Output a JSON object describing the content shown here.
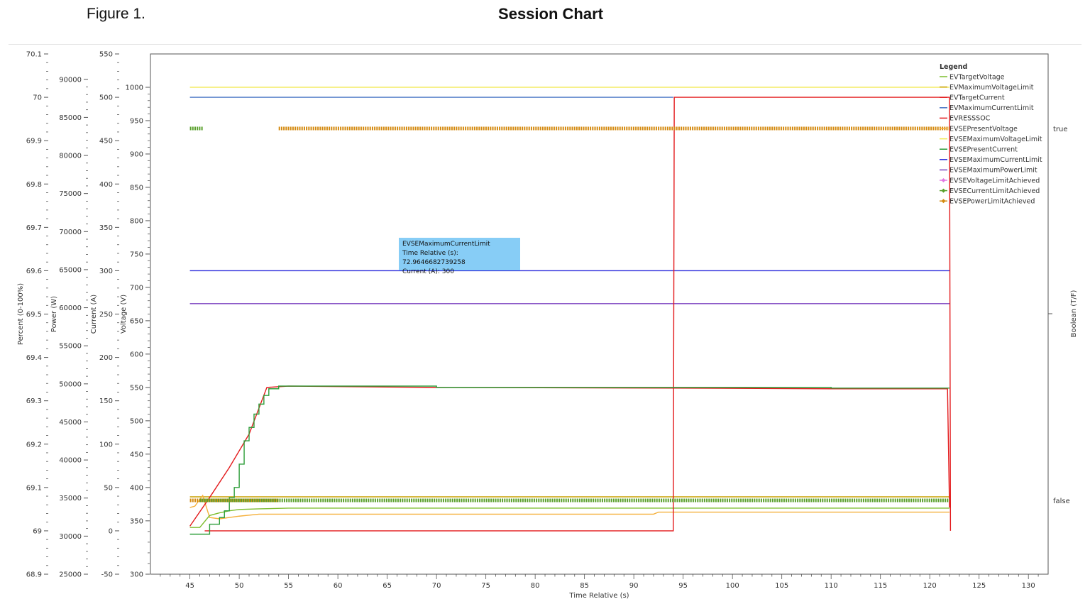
{
  "page": {
    "figure_label": "Figure 1.",
    "title": "Session Chart"
  },
  "tooltip": {
    "series": "EVSEMaximumCurrentLimit",
    "line1": "Time Relative (s): 72.9646682739258",
    "line2": "Current (A): 300"
  },
  "chart_data": {
    "type": "line",
    "title": "Session Chart",
    "xlabel": "Time Relative (s)",
    "xlim": [
      41,
      132
    ],
    "x_ticks": [
      45,
      50,
      55,
      60,
      65,
      70,
      75,
      80,
      85,
      90,
      95,
      100,
      105,
      110,
      115,
      120,
      125,
      130
    ],
    "grid": false,
    "legend_title": "Legend",
    "legend_position": "top-right",
    "axes": [
      {
        "id": "percent",
        "label": "Percent (0-100%)",
        "min": 68.9,
        "max": 70.1,
        "ticks": [
          "68.9",
          "69",
          "69.1",
          "69.2",
          "69.3",
          "69.4",
          "69.5",
          "69.6",
          "69.7",
          "69.8",
          "69.9",
          "70",
          "70.1"
        ]
      },
      {
        "id": "power",
        "label": "Power (W)",
        "min": 25000,
        "max": 93333,
        "ticks": [
          "25000",
          "30000",
          "35000",
          "40000",
          "45000",
          "50000",
          "55000",
          "60000",
          "65000",
          "70000",
          "75000",
          "80000",
          "85000",
          "90000"
        ]
      },
      {
        "id": "current",
        "label": "Current (A)",
        "min": -50,
        "max": 550,
        "ticks": [
          "-50",
          "0",
          "50",
          "100",
          "150",
          "200",
          "250",
          "300",
          "350",
          "400",
          "450",
          "500",
          "550"
        ]
      },
      {
        "id": "voltage",
        "label": "Voltage (V)",
        "min": 270,
        "max": 1050,
        "ticks": [
          "300",
          "350",
          "400",
          "450",
          "500",
          "550",
          "600",
          "650",
          "700",
          "750",
          "800",
          "850",
          "900",
          "950",
          "1000"
        ],
        "tick_values": [
          270,
          350,
          400,
          450,
          500,
          550,
          600,
          650,
          700,
          750,
          800,
          850,
          900,
          950,
          1000
        ]
      },
      {
        "id": "boolean",
        "label": "Boolean (T/F)",
        "position": "right",
        "ticks": [
          "false",
          "true"
        ]
      }
    ],
    "series": [
      {
        "name": "EVTargetVoltage",
        "color": "#7cbd2e",
        "axis": "voltage",
        "style": "line",
        "points": [
          [
            45,
            340
          ],
          [
            46,
            340
          ],
          [
            47,
            358
          ],
          [
            48,
            362
          ],
          [
            49,
            365
          ],
          [
            50,
            367
          ],
          [
            52,
            368
          ],
          [
            55,
            369
          ],
          [
            70,
            369
          ],
          [
            94,
            369
          ],
          [
            110,
            369
          ],
          [
            122,
            369
          ]
        ]
      },
      {
        "name": "EVMaximumVoltageLimit",
        "color": "#c8a000",
        "axis": "voltage",
        "style": "line",
        "points": [
          [
            45,
            386
          ],
          [
            122,
            386
          ]
        ]
      },
      {
        "name": "EVTargetCurrent",
        "color": "#e31a1c",
        "axis": "current",
        "style": "line",
        "points": [
          [
            46.5,
            0
          ],
          [
            94,
            0
          ],
          [
            94.1,
            500
          ],
          [
            122,
            500
          ],
          [
            122.1,
            0
          ]
        ]
      },
      {
        "name": "EVMaximumCurrentLimit",
        "color": "#4472c4",
        "axis": "current",
        "style": "line",
        "points": [
          [
            45,
            500
          ],
          [
            94,
            500
          ]
        ]
      },
      {
        "name": "EVRESSSOC",
        "color": "#e31a1c",
        "axis": "voltage",
        "style": "line",
        "points": [
          [
            45,
            342
          ],
          [
            47,
            385
          ],
          [
            49,
            430
          ],
          [
            51,
            480
          ],
          [
            52.8,
            550
          ],
          [
            55,
            552
          ],
          [
            70,
            550
          ],
          [
            94,
            549
          ],
          [
            110,
            548
          ],
          [
            121.8,
            548
          ],
          [
            122,
            370
          ]
        ]
      },
      {
        "name": "EVSEPresentVoltage",
        "color": "#f5b13d",
        "axis": "voltage",
        "style": "line",
        "points": [
          [
            45,
            370
          ],
          [
            45.5,
            372
          ],
          [
            46.3,
            388
          ],
          [
            47,
            355
          ],
          [
            48,
            353
          ],
          [
            50,
            357
          ],
          [
            52,
            360
          ],
          [
            55,
            360
          ],
          [
            70,
            360
          ],
          [
            92,
            360
          ],
          [
            92.5,
            363
          ],
          [
            122,
            363
          ]
        ]
      },
      {
        "name": "EVSEMaximumVoltageLimit",
        "color": "#f2e84d",
        "axis": "voltage",
        "style": "line",
        "points": [
          [
            45,
            1000
          ],
          [
            122,
            1000
          ]
        ]
      },
      {
        "name": "EVSEPresentCurrent",
        "color": "#2e9e3a",
        "axis": "voltage",
        "style": "step",
        "points": [
          [
            45,
            330
          ],
          [
            46.5,
            330
          ],
          [
            47,
            345
          ],
          [
            48,
            355
          ],
          [
            48.5,
            365
          ],
          [
            49,
            385
          ],
          [
            49.5,
            400
          ],
          [
            50,
            435
          ],
          [
            50.5,
            470
          ],
          [
            51,
            490
          ],
          [
            51.5,
            510
          ],
          [
            52,
            525
          ],
          [
            52.5,
            538
          ],
          [
            53,
            548
          ],
          [
            54,
            552
          ],
          [
            56,
            552
          ],
          [
            70,
            550
          ],
          [
            94,
            550
          ],
          [
            110,
            549
          ],
          [
            122,
            549
          ]
        ]
      },
      {
        "name": "EVSEMaximumCurrentLimit",
        "color": "#2c2cdc",
        "axis": "current",
        "style": "line",
        "points": [
          [
            45,
            300
          ],
          [
            122,
            300
          ]
        ]
      },
      {
        "name": "EVSEMaximumPowerLimit",
        "color": "#7a3fbf",
        "axis": "current",
        "style": "line",
        "points": [
          [
            45,
            262
          ],
          [
            122,
            262
          ]
        ]
      },
      {
        "name": "EVSEVoltageLimitAchieved",
        "color": "#e277e2",
        "axis": "boolean",
        "style": "markers",
        "points": []
      },
      {
        "name": "EVSECurrentLimitAchieved",
        "color": "#5aa02c",
        "axis": "boolean",
        "style": "markers",
        "points": [
          [
            45,
            1
          ],
          [
            46.3,
            1
          ],
          [
            46,
            0
          ],
          [
            122,
            0
          ]
        ]
      },
      {
        "name": "EVSEPowerLimitAchieved",
        "color": "#d48a10",
        "axis": "boolean",
        "style": "markers",
        "points": [
          [
            45,
            0
          ],
          [
            54,
            0
          ],
          [
            54,
            1
          ],
          [
            122,
            1
          ]
        ]
      }
    ],
    "annotations": [
      {
        "type": "tooltip",
        "series": "EVSEMaximumCurrentLimit",
        "x": 72.9646682739258,
        "y": 300
      }
    ]
  }
}
